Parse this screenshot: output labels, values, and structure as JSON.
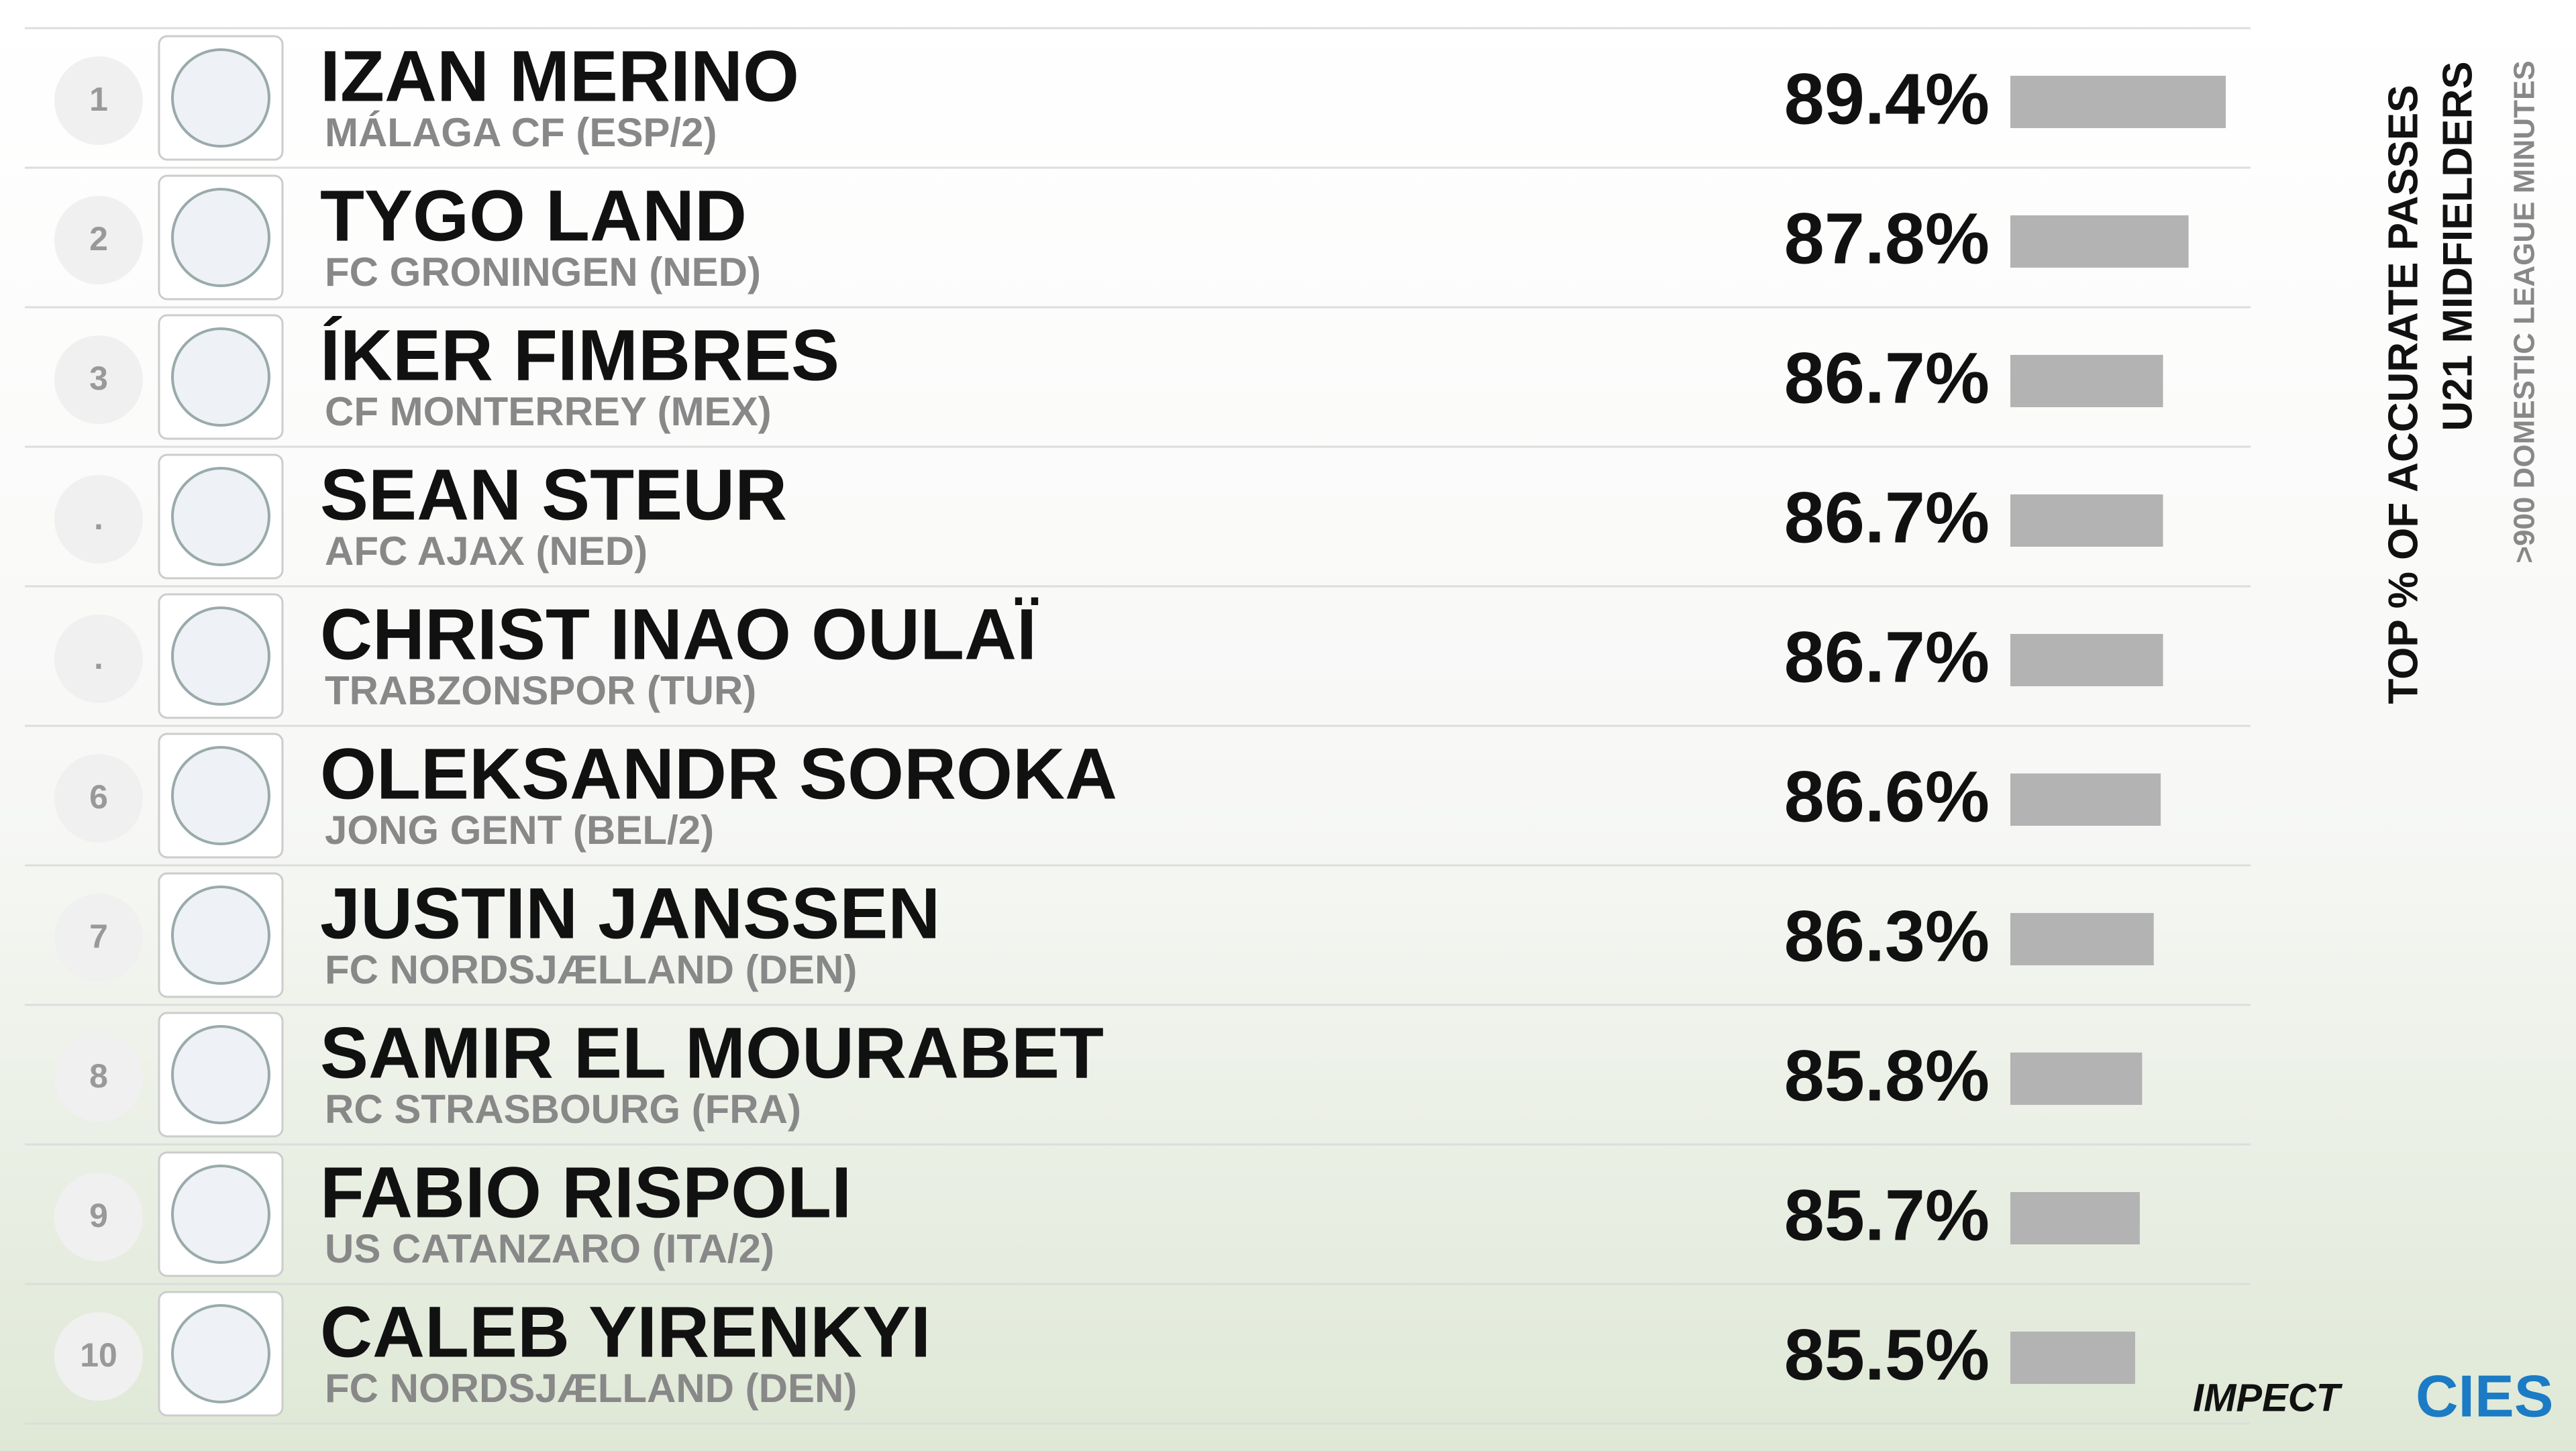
{
  "chart_data": {
    "type": "bar",
    "title": "TOP % OF ACCURATE PASSES",
    "subtitle": "U21 MIDFIELDERS",
    "note": ">900 DOMESTIC LEAGUE MINUTES",
    "ranks": [
      "1",
      "2",
      "3",
      ".",
      ".",
      "6",
      "7",
      "8",
      "9",
      "10"
    ],
    "categories": [
      "IZAN MERINO",
      "TYGO LAND",
      "ÍKER FIMBRES",
      "SEAN STEUR",
      "CHRIST INAO OULAÏ",
      "OLEKSANDR SOROKA",
      "JUSTIN JANSSEN",
      "SAMIR EL MOURABET",
      "FABIO RISPOLI",
      "CALEB YIRENKYI"
    ],
    "clubs": [
      "MÁLAGA CF (ESP/2)",
      "FC GRONINGEN (NED)",
      "CF MONTERREY (MEX)",
      "AFC AJAX (NED)",
      "TRABZONSPOR (TUR)",
      "JONG GENT (BEL/2)",
      "FC NORDSJÆLLAND (DEN)",
      "RC STRASBOURG (FRA)",
      "US CATANZARO (ITA/2)",
      "FC NORDSJÆLLAND (DEN)"
    ],
    "values": [
      89.4,
      87.8,
      86.7,
      86.7,
      86.7,
      86.6,
      86.3,
      85.8,
      85.7,
      85.5
    ],
    "value_labels": [
      "89.4%",
      "87.8%",
      "86.7%",
      "86.7%",
      "86.7%",
      "86.6%",
      "86.3%",
      "85.8%",
      "85.7%",
      "85.5%"
    ],
    "color": "#b3b3b3",
    "brands": [
      "IMPECT",
      "CIES"
    ]
  }
}
